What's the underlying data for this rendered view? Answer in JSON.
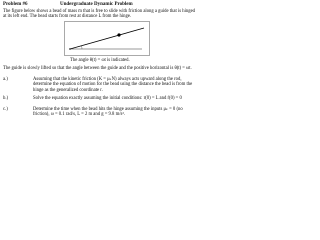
{
  "header": {
    "problem": "Problem #6",
    "title": "Undergraduate Dynamic Problem"
  },
  "intro": "The figure below shows a bead of mass m that is free to slide with friction along a guide that is hinged at its left end. The bead starts from rest at distance L from the hinge.",
  "figure": {
    "caption": "The angle θ(t) = ωt is indicated."
  },
  "setup": "The guide is slowly lifted so that the angle between the guide and the positive horizontal is θ(t) = ωt.",
  "items": [
    {
      "label": "a.)",
      "text": "Assuming that the kinetic friction (K = μₖN) always acts upward along the rod, determine the equation of motion for the bead using the distance the bead is from the hinge as the generalized coordinate r."
    },
    {
      "label": "b.)",
      "text": "Solve the equation exactly assuming the initial conditions: r(0) = L and ṙ(0) = 0"
    },
    {
      "label": "c.)",
      "text": "Determine the time when the bead hits the hinge assuming the inputs μₖ = 0 (no friction), ω = 0.1 rad/s, L = 2 m and g = 9.8 m/s²."
    }
  ]
}
